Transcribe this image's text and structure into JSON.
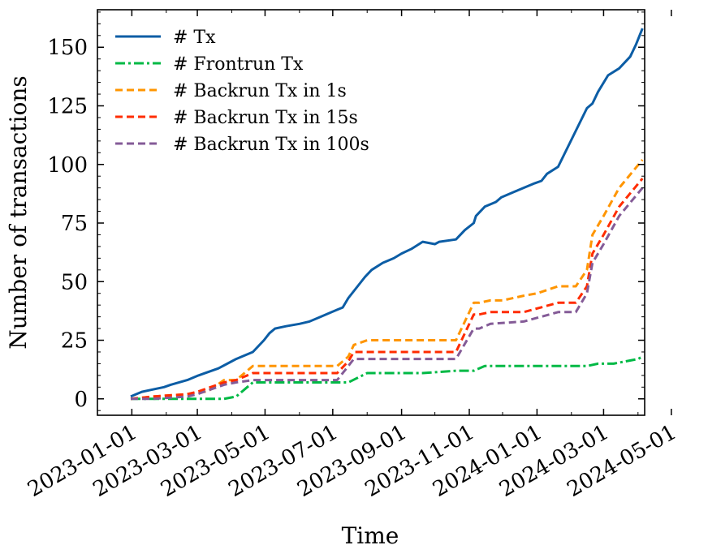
{
  "chart_data": {
    "type": "line",
    "title": "",
    "xlabel": "Time",
    "ylabel": "Number of transactions",
    "xlim": [
      "2022-12-01",
      "2024-04-07"
    ],
    "ylim": [
      -7,
      166
    ],
    "xticks": [
      "2023-01-01",
      "2023-03-01",
      "2023-05-01",
      "2023-07-01",
      "2023-09-01",
      "2023-11-01",
      "2024-01-01",
      "2024-03-01",
      "2024-05-01"
    ],
    "yticks": [
      0,
      25,
      50,
      75,
      100,
      125,
      150
    ],
    "legend_position": "top-left",
    "series": [
      {
        "name": "# Tx",
        "color": "#0C5DA5",
        "style": "solid",
        "x": [
          "2022-12-31",
          "2023-01-05",
          "2023-01-10",
          "2023-01-20",
          "2023-01-30",
          "2023-02-05",
          "2023-02-20",
          "2023-03-02",
          "2023-03-20",
          "2023-04-01",
          "2023-04-05",
          "2023-04-10",
          "2023-04-20",
          "2023-04-30",
          "2023-05-05",
          "2023-05-10",
          "2023-05-20",
          "2023-06-01",
          "2023-06-10",
          "2023-06-20",
          "2023-06-30",
          "2023-07-05",
          "2023-07-10",
          "2023-07-15",
          "2023-07-30",
          "2023-08-05",
          "2023-08-15",
          "2023-08-25",
          "2023-09-01",
          "2023-09-10",
          "2023-09-20",
          "2023-10-01",
          "2023-10-05",
          "2023-10-20",
          "2023-10-28",
          "2023-11-05",
          "2023-11-07",
          "2023-11-15",
          "2023-11-25",
          "2023-11-30",
          "2023-12-10",
          "2023-12-15",
          "2023-12-25",
          "2023-12-30",
          "2024-01-05",
          "2024-01-10",
          "2024-01-20",
          "2024-02-15",
          "2024-02-20",
          "2024-02-25",
          "2024-03-05",
          "2024-03-15",
          "2024-03-25",
          "2024-03-30",
          "2024-04-05"
        ],
        "values": [
          1,
          2,
          3,
          4,
          5,
          6,
          8,
          10,
          13,
          16,
          17,
          18,
          20,
          25,
          28,
          30,
          31,
          32,
          33,
          35,
          37,
          38,
          39,
          43,
          52,
          55,
          58,
          60,
          62,
          64,
          67,
          66,
          67,
          68,
          72,
          75,
          78,
          82,
          84,
          86,
          88,
          89,
          91,
          92,
          93,
          96,
          99,
          124,
          126,
          131,
          138,
          141,
          146,
          151,
          158
        ]
      },
      {
        "name": "# Frontrun Tx",
        "color": "#00B945",
        "style": "dashdot",
        "x": [
          "2022-12-31",
          "2023-01-20",
          "2023-03-01",
          "2023-03-25",
          "2023-04-05",
          "2023-04-20",
          "2023-06-10",
          "2023-07-01",
          "2023-07-15",
          "2023-08-01",
          "2023-09-01",
          "2023-09-20",
          "2023-10-20",
          "2023-11-05",
          "2023-11-15",
          "2023-12-15",
          "2024-01-20",
          "2024-02-15",
          "2024-02-25",
          "2024-03-10",
          "2024-04-01",
          "2024-04-05"
        ],
        "values": [
          0,
          0,
          0,
          0,
          1,
          7,
          7,
          7,
          7,
          11,
          11,
          11,
          12,
          12,
          14,
          14,
          14,
          14,
          15,
          15,
          17,
          18
        ]
      },
      {
        "name": "# Backrun Tx in 1s",
        "color": "#FF9500",
        "style": "dashed",
        "x": [
          "2022-12-31",
          "2023-01-20",
          "2023-02-20",
          "2023-03-01",
          "2023-03-10",
          "2023-03-25",
          "2023-04-05",
          "2023-04-20",
          "2023-05-15",
          "2023-06-10",
          "2023-07-05",
          "2023-07-15",
          "2023-07-20",
          "2023-08-01",
          "2023-08-10",
          "2023-09-01",
          "2023-10-01",
          "2023-10-20",
          "2023-11-05",
          "2023-11-10",
          "2023-11-20",
          "2023-12-01",
          "2023-12-20",
          "2024-01-01",
          "2024-01-20",
          "2024-02-05",
          "2024-02-15",
          "2024-02-20",
          "2024-03-01",
          "2024-03-15",
          "2024-04-05"
        ],
        "values": [
          0,
          1,
          2,
          3,
          3,
          8,
          8,
          14,
          14,
          14,
          14,
          18,
          23,
          25,
          25,
          25,
          25,
          25,
          41,
          41,
          42,
          42,
          44,
          45,
          48,
          48,
          55,
          70,
          78,
          90,
          102
        ]
      },
      {
        "name": "# Backrun Tx in 15s",
        "color": "#FF2C00",
        "style": "dashed",
        "x": [
          "2022-12-31",
          "2023-01-20",
          "2023-02-20",
          "2023-03-01",
          "2023-03-25",
          "2023-04-05",
          "2023-04-20",
          "2023-05-15",
          "2023-07-05",
          "2023-07-15",
          "2023-07-20",
          "2023-08-01",
          "2023-09-01",
          "2023-10-20",
          "2023-11-05",
          "2023-11-10",
          "2023-11-20",
          "2023-12-20",
          "2024-01-20",
          "2024-02-05",
          "2024-02-15",
          "2024-02-20",
          "2024-03-01",
          "2024-03-15",
          "2024-04-05"
        ],
        "values": [
          0,
          1,
          2,
          3,
          7,
          8,
          11,
          11,
          11,
          16,
          20,
          20,
          20,
          20,
          36,
          36,
          37,
          37,
          41,
          41,
          48,
          62,
          70,
          82,
          94
        ]
      },
      {
        "name": "# Backrun Tx in 100s",
        "color": "#845B97",
        "style": "dashed",
        "x": [
          "2022-12-31",
          "2023-01-20",
          "2023-02-20",
          "2023-03-01",
          "2023-03-25",
          "2023-04-05",
          "2023-04-20",
          "2023-05-15",
          "2023-07-05",
          "2023-07-15",
          "2023-07-20",
          "2023-08-01",
          "2023-09-01",
          "2023-10-20",
          "2023-11-05",
          "2023-11-10",
          "2023-11-20",
          "2023-12-20",
          "2024-01-20",
          "2024-02-05",
          "2024-02-15",
          "2024-02-20",
          "2024-03-01",
          "2024-03-15",
          "2024-04-05"
        ],
        "values": [
          0,
          0,
          1,
          2,
          6,
          7,
          8,
          8,
          8,
          14,
          17,
          17,
          17,
          17,
          30,
          30,
          32,
          33,
          37,
          37,
          45,
          58,
          66,
          78,
          90
        ]
      }
    ]
  }
}
